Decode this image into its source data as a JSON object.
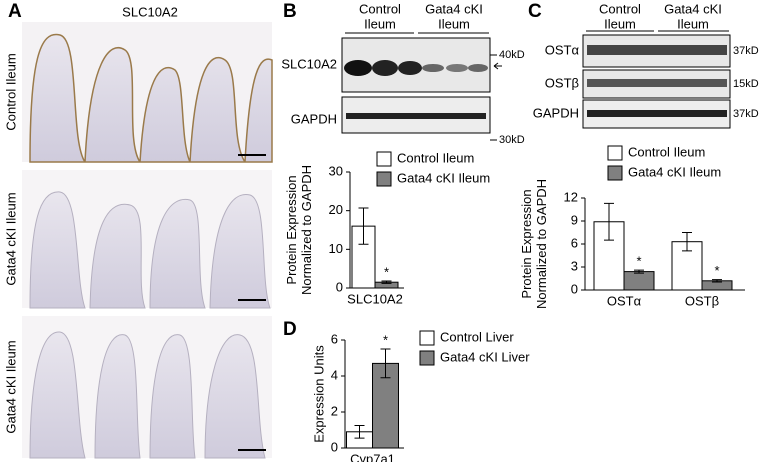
{
  "panels": [
    "A",
    "B",
    "C",
    "D"
  ],
  "panel_a": {
    "title": "SLC10A2",
    "rows": [
      "Control Ileum",
      "Gata4 cKI Ileum",
      "Gata4 cKI Ileum"
    ]
  },
  "blot_b": {
    "groups": [
      [
        "Control",
        "Ileum"
      ],
      [
        "Gata4 cKI",
        "Ileum"
      ]
    ],
    "targets": [
      "SLC10A2",
      "GAPDH"
    ],
    "markers": [
      "40kD",
      "30kD"
    ]
  },
  "blot_c": {
    "groups": [
      [
        "Control",
        "Ileum"
      ],
      [
        "Gata4 cKI",
        "Ileum"
      ]
    ],
    "targets": [
      "OSTα",
      "OSTβ",
      "GAPDH"
    ],
    "markers": [
      "37kD",
      "15kD",
      "37kD"
    ]
  },
  "chart_data": [
    {
      "type": "bar",
      "categories": [
        "SLC10A2"
      ],
      "ylabel": [
        "Protein Expression",
        "Normalized to GAPDH"
      ],
      "series": [
        {
          "name": "Control Ileum",
          "color": "#ffffff",
          "values": [
            16
          ],
          "errors": [
            4.7
          ]
        },
        {
          "name": "Gata4 cKI Ileum",
          "color": "#808080",
          "values": [
            1.5
          ],
          "errors": [
            0.3
          ]
        }
      ],
      "ylim": [
        0,
        30
      ],
      "yticks": [
        0,
        10,
        20,
        30
      ],
      "significance": "*"
    },
    {
      "type": "bar",
      "categories": [
        "OSTα",
        "OSTβ"
      ],
      "ylabel": [
        "Protein Expression",
        "Normalized to GAPDH"
      ],
      "series": [
        {
          "name": "Control Ileum",
          "color": "#ffffff",
          "values": [
            8.9,
            6.3
          ],
          "errors": [
            2.4,
            1.2
          ]
        },
        {
          "name": "Gata4 cKI Ileum",
          "color": "#808080",
          "values": [
            2.4,
            1.2
          ],
          "errors": [
            0.2,
            0.15
          ]
        }
      ],
      "ylim": [
        0,
        12
      ],
      "yticks": [
        0,
        3,
        6,
        9,
        12
      ],
      "significance": "*"
    },
    {
      "type": "bar",
      "categories": [
        "Cyp7a1"
      ],
      "ylabel": [
        "Expression Units"
      ],
      "series": [
        {
          "name": "Control Liver",
          "color": "#ffffff",
          "values": [
            0.9
          ],
          "errors": [
            0.35
          ]
        },
        {
          "name": "Gata4 cKI Liver",
          "color": "#808080",
          "values": [
            4.7
          ],
          "errors": [
            0.8
          ]
        }
      ],
      "ylim": [
        0,
        6
      ],
      "yticks": [
        0,
        2,
        4,
        6
      ],
      "significance": "*"
    }
  ]
}
